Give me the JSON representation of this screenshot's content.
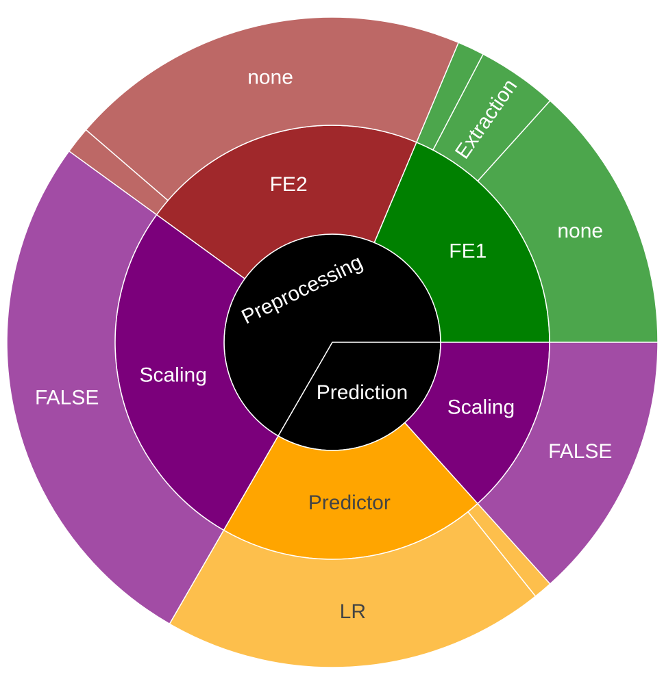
{
  "chart_data": {
    "type": "sunburst",
    "title": "",
    "nodes": [
      {
        "id": "preprocessing",
        "label": "Preprocessing",
        "parent": "",
        "value": 50,
        "color": "#000000",
        "text_color": "#ffffff"
      },
      {
        "id": "prediction",
        "label": "Prediction",
        "parent": "",
        "value": 25,
        "color": "#000000",
        "text_color": "#ffffff"
      },
      {
        "id": "fe1",
        "label": "FE1",
        "parent": "preprocessing",
        "value": 14,
        "color": "#008000",
        "text_color": "#ffffff"
      },
      {
        "id": "fe2",
        "label": "FE2",
        "parent": "preprocessing",
        "value": 16,
        "color": "#a0282b",
        "text_color": "#ffffff"
      },
      {
        "id": "scaling-pre",
        "label": "Scaling",
        "parent": "preprocessing",
        "value": 20,
        "color": "#7b007b",
        "text_color": "#ffffff"
      },
      {
        "id": "fe1-none",
        "label": "none",
        "parent": "fe1",
        "value": 10,
        "color": "#4ca64c",
        "text_color": "#ffffff"
      },
      {
        "id": "fe1-extraction",
        "label": "Extraction",
        "parent": "fe1",
        "value": 3,
        "color": "#4ca64c",
        "text_color": "#ffffff"
      },
      {
        "id": "fe1-other",
        "label": "",
        "parent": "fe1",
        "value": 1,
        "color": "#4ca64c",
        "text_color": "#ffffff"
      },
      {
        "id": "fe2-none",
        "label": "none",
        "parent": "fe2",
        "value": 15,
        "color": "#bd6866",
        "text_color": "#ffffff"
      },
      {
        "id": "fe2-other",
        "label": "",
        "parent": "fe2",
        "value": 1,
        "color": "#bd6866",
        "text_color": "#ffffff"
      },
      {
        "id": "scaling-pre-false",
        "label": "FALSE",
        "parent": "scaling-pre",
        "value": 20,
        "color": "#a24ca5",
        "text_color": "#ffffff"
      },
      {
        "id": "predictor",
        "label": "Predictor",
        "parent": "prediction",
        "value": 15,
        "color": "#ffa500",
        "text_color": "#444444"
      },
      {
        "id": "scaling-pred",
        "label": "Scaling",
        "parent": "prediction",
        "value": 10,
        "color": "#7b007b",
        "text_color": "#ffffff"
      },
      {
        "id": "predictor-lr",
        "label": "LR",
        "parent": "predictor",
        "value": 14.3,
        "color": "#fdbf4c",
        "text_color": "#444444"
      },
      {
        "id": "predictor-other",
        "label": "",
        "parent": "predictor",
        "value": 0.7,
        "color": "#fdbf4c",
        "text_color": "#444444"
      },
      {
        "id": "scaling-pred-false",
        "label": "FALSE",
        "parent": "scaling-pred",
        "value": 10,
        "color": "#a24ca5",
        "text_color": "#ffffff"
      }
    ]
  }
}
